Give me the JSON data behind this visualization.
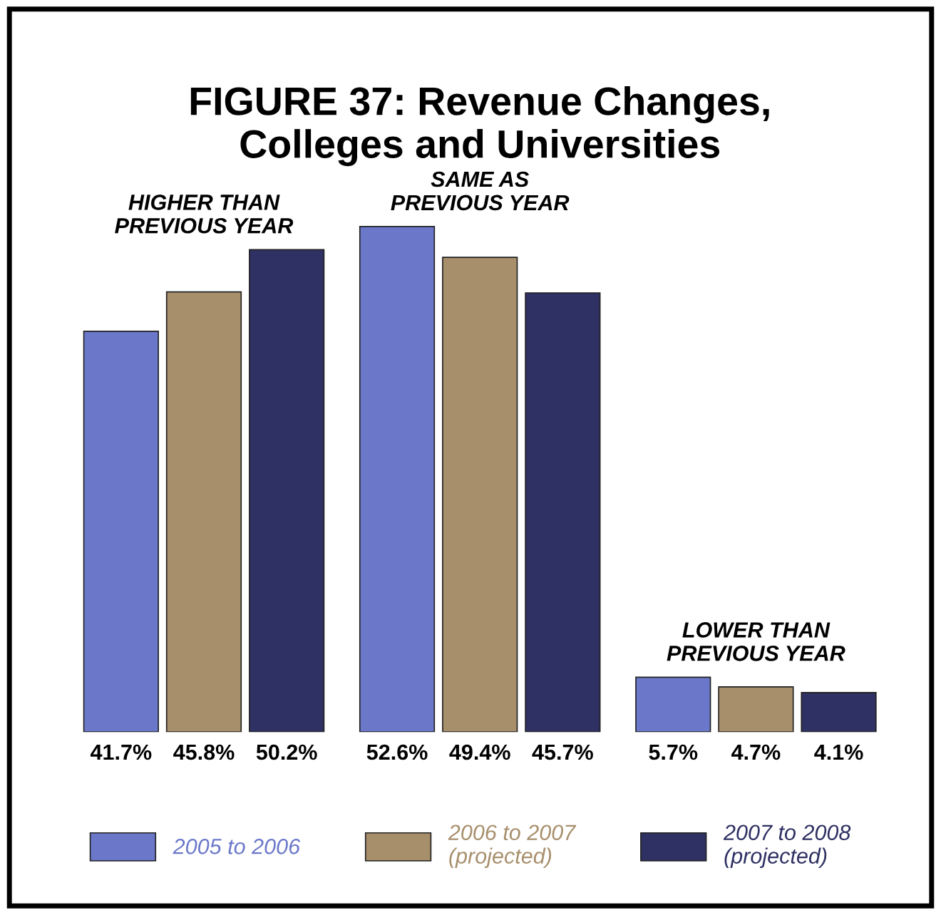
{
  "chart_data": {
    "type": "bar",
    "title": "FIGURE 37: Revenue Changes,\nColleges and Universities",
    "categories": [
      "HIGHER THAN\nPREVIOUS YEAR",
      "SAME AS\nPREVIOUS YEAR",
      "LOWER THAN\nPREVIOUS YEAR"
    ],
    "series": [
      {
        "name": "2005 to 2006",
        "color": "#6b78c9",
        "values": [
          41.7,
          52.6,
          5.7
        ],
        "value_labels": [
          "41.7%",
          "52.6%",
          "5.7%"
        ]
      },
      {
        "name": "2006 to 2007\n(projected)",
        "color": "#a88f6c",
        "values": [
          45.8,
          49.4,
          4.7
        ],
        "value_labels": [
          "45.8%",
          "49.4%",
          "4.7%"
        ]
      },
      {
        "name": "2007 to 2008\n(projected)",
        "color": "#2f3063",
        "values": [
          50.2,
          45.7,
          4.1
        ],
        "value_labels": [
          "50.2%",
          "45.7%",
          "4.1%"
        ]
      }
    ],
    "legend": "bottom"
  }
}
